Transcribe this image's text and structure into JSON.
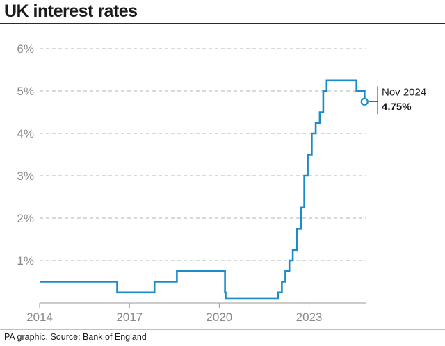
{
  "chart_data": {
    "type": "line",
    "title": "UK interest rates",
    "source": "PA graphic. Source: Bank of England",
    "xlabel": "",
    "ylabel": "",
    "x_ticks": [
      "2014",
      "2017",
      "2020",
      "2023"
    ],
    "y_ticks": [
      "1%",
      "2%",
      "3%",
      "4%",
      "5%",
      "6%"
    ],
    "xlim": [
      "2014-01-01",
      "2024-11-30"
    ],
    "ylim": [
      0,
      6
    ],
    "grid": "horizontal-dashed",
    "line_color": "#1c8bc7",
    "series": [
      {
        "name": "",
        "step": true,
        "points": [
          [
            "2014-01-01",
            0.5
          ],
          [
            "2016-08-04",
            0.25
          ],
          [
            "2017-11-02",
            0.5
          ],
          [
            "2018-08-02",
            0.75
          ],
          [
            "2020-03-11",
            0.25
          ],
          [
            "2020-03-19",
            0.1
          ],
          [
            "2021-12-16",
            0.25
          ],
          [
            "2022-02-03",
            0.5
          ],
          [
            "2022-03-17",
            0.75
          ],
          [
            "2022-05-05",
            1.0
          ],
          [
            "2022-06-16",
            1.25
          ],
          [
            "2022-08-04",
            1.75
          ],
          [
            "2022-09-22",
            2.25
          ],
          [
            "2022-11-03",
            3.0
          ],
          [
            "2022-12-15",
            3.5
          ],
          [
            "2023-02-02",
            4.0
          ],
          [
            "2023-03-23",
            4.25
          ],
          [
            "2023-05-11",
            4.5
          ],
          [
            "2023-06-22",
            5.0
          ],
          [
            "2023-08-03",
            5.25
          ],
          [
            "2024-08-01",
            5.0
          ],
          [
            "2024-11-07",
            4.75
          ],
          [
            "2024-11-30",
            4.75
          ]
        ]
      }
    ],
    "annotation": {
      "date_label": "Nov 2024",
      "value_label": "4.75%",
      "x": "2024-11-07",
      "y": 4.75
    }
  }
}
